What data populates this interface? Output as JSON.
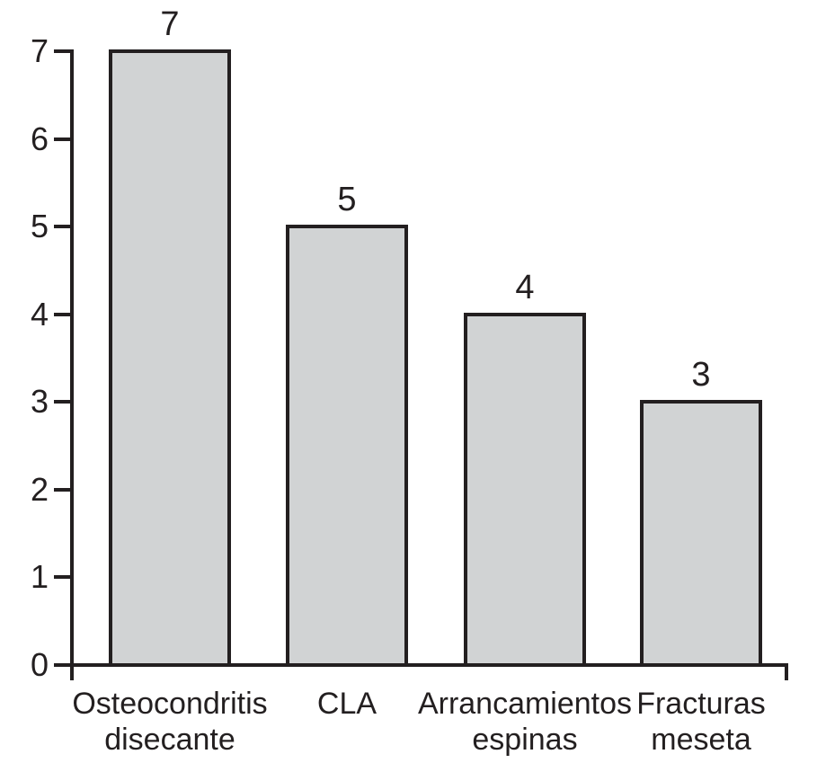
{
  "chart_data": {
    "type": "bar",
    "title": "",
    "xlabel": "",
    "ylabel": "",
    "categories": [
      "Osteocondritis disecante",
      "CLA",
      "Arrancamientos espinas",
      "Fracturas meseta"
    ],
    "category_lines": [
      [
        "Osteocondritis",
        "disecante"
      ],
      [
        "CLA"
      ],
      [
        "Arrancamientos",
        "espinas"
      ],
      [
        "Fracturas",
        "meseta"
      ]
    ],
    "values": [
      7,
      5,
      4,
      3
    ],
    "bar_value_labels": [
      "7",
      "5",
      "4",
      "3"
    ],
    "ylim": [
      0,
      7
    ],
    "yticks": [
      0,
      1,
      2,
      3,
      4,
      5,
      6,
      7
    ],
    "grid": false,
    "legend": "none"
  },
  "colors": {
    "bar_fill": "#d1d3d4",
    "bar_border": "#231f20",
    "axis": "#231f20",
    "text": "#231f20",
    "background": "#ffffff"
  }
}
